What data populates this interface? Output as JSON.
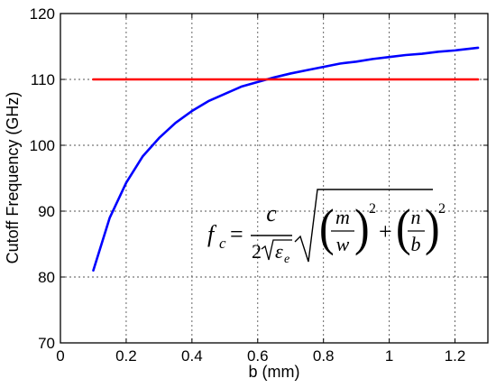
{
  "chart_data": {
    "type": "line",
    "xlabel": "b (mm)",
    "ylabel": "Cutoff Frequency (GHz)",
    "xlim": [
      0,
      1.3
    ],
    "ylim": [
      70,
      120
    ],
    "xticks": [
      0,
      0.2,
      0.4,
      0.6,
      0.8,
      1,
      1.2
    ],
    "xtick_labels": [
      "0",
      "0.2",
      "0.4",
      "0.6",
      "0.8",
      "1",
      "1.2"
    ],
    "yticks": [
      70,
      80,
      90,
      100,
      110,
      120
    ],
    "ytick_labels": [
      "70",
      "80",
      "90",
      "100",
      "110",
      "120"
    ],
    "grid": true,
    "colors": {
      "curve": "#0000ff",
      "reference": "#ff0000"
    },
    "series": [
      {
        "x": [
          0.1,
          0.15,
          0.2,
          0.25,
          0.3,
          0.35,
          0.4,
          0.45,
          0.5,
          0.55,
          0.6,
          0.65,
          0.7,
          0.75,
          0.8,
          0.85,
          0.9,
          0.95,
          1.0,
          1.05,
          1.1,
          1.15,
          1.2,
          1.27
        ],
        "values": [
          81.0,
          89.0,
          94.3,
          98.3,
          101.1,
          103.4,
          105.2,
          106.7,
          107.8,
          108.9,
          109.6,
          110.3,
          110.9,
          111.4,
          111.9,
          112.4,
          112.7,
          113.1,
          113.4,
          113.7,
          113.9,
          114.2,
          114.4,
          114.8
        ]
      },
      {
        "x": [
          0.1,
          1.27
        ],
        "values": [
          110,
          110
        ]
      }
    ],
    "equation": {
      "lhs": "f",
      "lhs_sub": "c",
      "equals": "=",
      "numerator": "c",
      "denominator_coef": "2",
      "denominator_var": "ε",
      "denominator_sub": "e",
      "term1_num": "m",
      "term1_den": "w",
      "term2_num": "n",
      "term2_den": "b",
      "exponent": "2",
      "plus": "+"
    }
  }
}
